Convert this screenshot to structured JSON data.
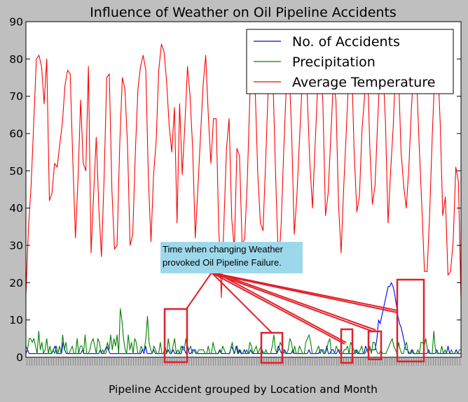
{
  "chart_data": {
    "type": "line",
    "title": "Influence of Weather on Oil Pipeline Accidents",
    "xlabel": "Pipeline Accident grouped by Location and Month",
    "ylabel": "",
    "ylim": [
      0,
      90
    ],
    "yticks": [
      0,
      10,
      20,
      30,
      40,
      50,
      60,
      70,
      80,
      90
    ],
    "grid": false,
    "legend_position": "top-right",
    "series": [
      {
        "name": "No. of Accidents",
        "color": "#0000ff",
        "values": [
          1,
          2,
          1,
          1,
          1,
          1,
          1,
          1,
          1,
          1,
          1,
          1,
          1,
          1,
          1,
          1,
          1,
          2,
          3,
          1,
          1,
          1,
          1,
          4,
          2,
          1,
          1,
          1,
          1,
          1,
          1,
          1,
          1,
          1,
          1,
          2,
          1,
          1,
          1,
          1,
          1,
          1,
          1,
          1,
          1,
          1,
          2,
          1,
          1,
          2,
          3,
          2,
          1,
          1,
          1,
          1,
          1,
          1,
          1,
          1,
          1,
          1,
          1,
          1,
          1,
          1,
          1,
          1,
          1,
          1,
          1,
          1,
          2,
          1,
          3,
          1,
          1,
          1,
          1,
          2,
          1,
          1,
          1,
          1,
          1,
          1,
          1,
          1,
          2,
          1,
          1,
          2,
          1,
          1,
          1,
          1,
          1,
          3,
          2,
          1,
          3,
          1,
          1,
          2,
          2,
          1,
          1,
          1,
          1,
          1,
          1,
          1,
          1,
          1,
          1,
          1,
          1,
          1,
          1,
          1,
          2,
          1,
          1,
          1,
          1,
          1,
          1,
          3,
          2,
          1,
          3,
          1,
          2,
          1,
          1,
          2,
          1,
          1,
          1,
          2,
          1,
          1,
          1,
          1,
          1,
          1,
          2,
          1,
          1,
          1,
          1,
          1,
          1,
          1,
          1,
          1,
          3,
          2,
          1,
          1,
          2,
          1,
          1,
          1,
          1,
          2,
          1,
          1,
          1,
          1,
          1,
          1,
          1,
          1,
          1,
          2,
          1,
          1,
          1,
          1,
          1,
          1,
          2,
          2,
          1,
          1,
          3,
          1,
          1,
          2,
          2,
          1,
          1,
          2,
          1,
          1,
          1,
          1,
          1,
          1,
          1,
          1,
          1,
          1,
          2,
          1,
          1,
          1,
          1,
          1,
          3,
          2,
          2,
          2,
          2,
          2,
          2,
          5,
          10,
          9,
          11,
          13,
          15,
          17,
          19,
          19,
          20,
          19,
          17,
          14,
          11,
          9,
          8,
          6,
          4,
          2,
          2,
          1,
          1,
          2,
          1,
          1,
          1,
          1,
          1,
          1,
          1,
          1,
          1,
          2,
          1,
          1,
          1,
          1,
          2,
          1,
          1,
          1,
          1,
          1,
          1,
          3,
          1,
          1,
          1,
          1,
          2,
          1,
          1,
          1
        ]
      },
      {
        "name": "Precipitation",
        "color": "#008000",
        "values": [
          3,
          2,
          5,
          5,
          4,
          5,
          3,
          1,
          7,
          2,
          4,
          1,
          2,
          5,
          1,
          3,
          1,
          2,
          1,
          3,
          1,
          3,
          1,
          6,
          2,
          4,
          1,
          1,
          2,
          3,
          1,
          1,
          5,
          1,
          3,
          3,
          1,
          6,
          1,
          1,
          2,
          4,
          5,
          3,
          1,
          5,
          4,
          1,
          2,
          1,
          1,
          4,
          2,
          6,
          2,
          5,
          3,
          6,
          1,
          13,
          10,
          5,
          2,
          1,
          6,
          2,
          4,
          1,
          5,
          4,
          1,
          1,
          3,
          2,
          2,
          5,
          11,
          4,
          2,
          1,
          3,
          2,
          1,
          1,
          4,
          1,
          1,
          3,
          1,
          5,
          2,
          1,
          3,
          5,
          1,
          2,
          1,
          3,
          2,
          2,
          5,
          2,
          2,
          3,
          1,
          2,
          2,
          1,
          2,
          2,
          2,
          2,
          1,
          1,
          3,
          1,
          1,
          4,
          2,
          1,
          1,
          2,
          1,
          3,
          2,
          1,
          1,
          1,
          2,
          4,
          1,
          2,
          3,
          1,
          2,
          1,
          1,
          1,
          2,
          1,
          4,
          3,
          1,
          2,
          3,
          1,
          2,
          3,
          1,
          1,
          2,
          1,
          1,
          1,
          3,
          6,
          2,
          1,
          2,
          4,
          3,
          2,
          1,
          1,
          2,
          5,
          4,
          1,
          3,
          1,
          1,
          3,
          2,
          1,
          1,
          4,
          5,
          6,
          4,
          1,
          1,
          1,
          2,
          3,
          1,
          2,
          2,
          1,
          2,
          4,
          5,
          1,
          1,
          1,
          3,
          2,
          2,
          1,
          1,
          2,
          2,
          3,
          1,
          4,
          3,
          2,
          1,
          2,
          1,
          2,
          3,
          1,
          1,
          2,
          1,
          3,
          1,
          4,
          4,
          2,
          1,
          1,
          2,
          1,
          1,
          1,
          2,
          3,
          4,
          5,
          3,
          2,
          1,
          4,
          2,
          1,
          1,
          3,
          4,
          1,
          1,
          2,
          1,
          1,
          1,
          2,
          1,
          4,
          4,
          3,
          5,
          2,
          1,
          1,
          1,
          7,
          2,
          1,
          1,
          1,
          3,
          1,
          2,
          1,
          1,
          1,
          2,
          1,
          1,
          1,
          1,
          2,
          2
        ]
      },
      {
        "name": "Average Temperature",
        "color": "#ff0000",
        "values": [
          17,
          35,
          46,
          63,
          80,
          81,
          78,
          68,
          80,
          42,
          44,
          52,
          51,
          57,
          63,
          73,
          77,
          76,
          53,
          32,
          48,
          69,
          52,
          50,
          78,
          28,
          44,
          59,
          40,
          27,
          48,
          75,
          76,
          45,
          29,
          30,
          57,
          75,
          72,
          57,
          30,
          33,
          55,
          72,
          78,
          81,
          77,
          48,
          31,
          49,
          58,
          77,
          84,
          82,
          74,
          62,
          55,
          67,
          36,
          68,
          49,
          62,
          78,
          70,
          56,
          32,
          45,
          59,
          73,
          81,
          65,
          52,
          64,
          64,
          35,
          16,
          36,
          56,
          64,
          37,
          29,
          56,
          54,
          30,
          32,
          48,
          71,
          77,
          72,
          49,
          36,
          34,
          52,
          72,
          78,
          70,
          45,
          24,
          36,
          56,
          74,
          78,
          60,
          33,
          43,
          58,
          73,
          78,
          70,
          52,
          40,
          57,
          73,
          82,
          68,
          38,
          44,
          59,
          74,
          69,
          41,
          28,
          46,
          61,
          77,
          80,
          55,
          39,
          43,
          61,
          70,
          82,
          56,
          41,
          46,
          63,
          78,
          79,
          63,
          36,
          50,
          62,
          80,
          76,
          55,
          46,
          40,
          51,
          67,
          79,
          74,
          56,
          40,
          23,
          23,
          39,
          60,
          77,
          80,
          63,
          38,
          43,
          22,
          23,
          31,
          51,
          47,
          16
        ]
      }
    ],
    "legend_labels": [
      "No. of Accidents",
      "Precipitation",
      "Average Temperature"
    ],
    "annotation": "Time when changing Weather provoked Oil Pipeline Failure.",
    "annotation_lines": [
      "Time when changing Weather",
      "provoked Oil Pipeline Failure."
    ],
    "annotation_box_color": "#9dd8ea",
    "highlight_color": "#e0202a",
    "xtick_count": 180
  }
}
